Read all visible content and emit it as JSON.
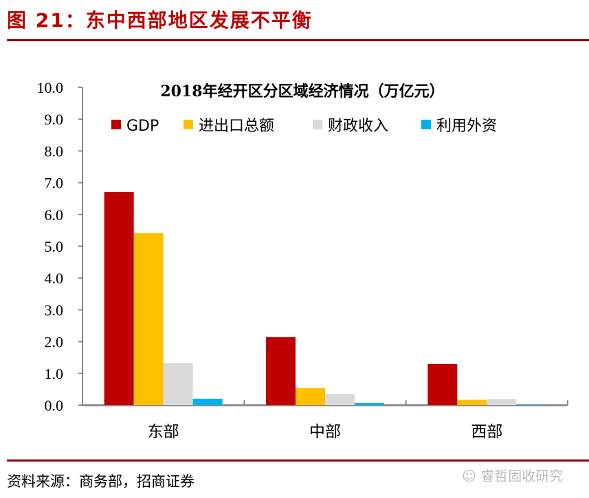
{
  "figure_title": "图 21：东中西部地区发展不平衡",
  "source": "资料来源：商务部，招商证券",
  "watermark": "睿哲固收研究",
  "chart_data": {
    "type": "bar",
    "title": "2018年经开区分区域经济情况（万亿元）",
    "categories": [
      "东部",
      "中部",
      "西部"
    ],
    "series": [
      {
        "name": "GDP",
        "color": "#c00000",
        "values": [
          6.71,
          2.14,
          1.3
        ]
      },
      {
        "name": "进出口总额",
        "color": "#ffc000",
        "values": [
          5.41,
          0.54,
          0.17
        ]
      },
      {
        "name": "财政收入",
        "color": "#d9d9d9",
        "values": [
          1.32,
          0.35,
          0.19
        ]
      },
      {
        "name": "利用外资",
        "color": "#00b0f0",
        "values": [
          0.2,
          0.07,
          0.02
        ]
      }
    ],
    "ylim": [
      0,
      10
    ],
    "yticks": [
      "0.0",
      "1.0",
      "2.0",
      "3.0",
      "4.0",
      "5.0",
      "6.0",
      "7.0",
      "8.0",
      "9.0",
      "10.0"
    ],
    "legend": "top",
    "grid": false
  }
}
